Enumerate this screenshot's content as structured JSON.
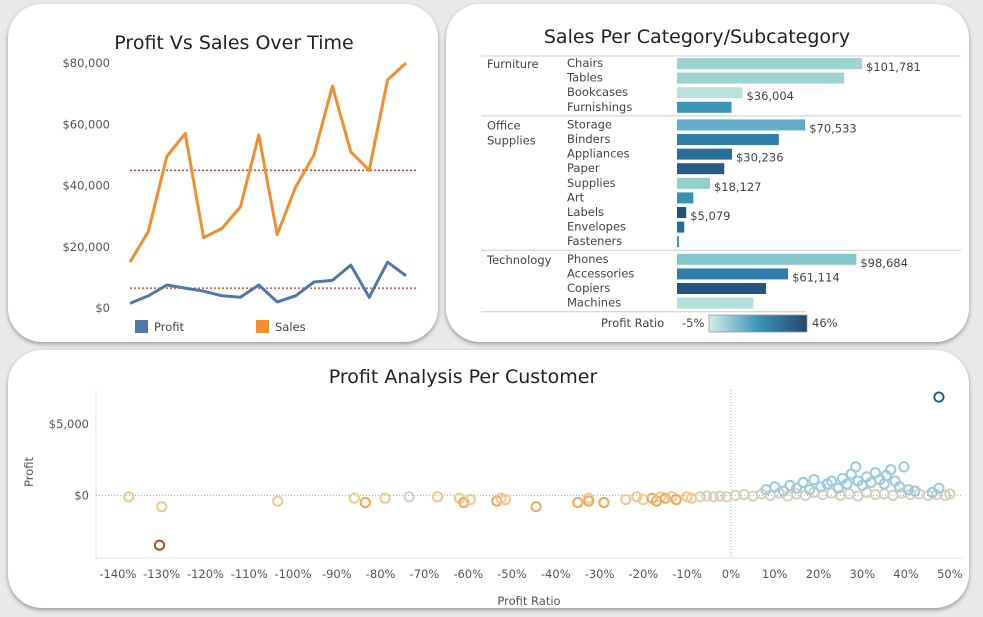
{
  "chart_data": [
    {
      "type": "line",
      "title": "Profit Vs Sales Over Time",
      "y_ticks": [
        "$80,000",
        "$60,000",
        "$40,000",
        "$20,000",
        "$0"
      ],
      "ylim": [
        0,
        80000
      ],
      "series": [
        {
          "name": "Sales",
          "color": "#f28e2b",
          "values": [
            15000,
            25000,
            49500,
            57000,
            23000,
            26000,
            33000,
            56500,
            24000,
            39500,
            50000,
            72500,
            51000,
            45000,
            74500,
            80000
          ]
        },
        {
          "name": "Profit",
          "color": "#4e79a7",
          "values": [
            1500,
            4000,
            7500,
            6500,
            5500,
            4000,
            3500,
            7500,
            2000,
            4000,
            8500,
            9000,
            14000,
            3500,
            15000,
            10500
          ]
        }
      ],
      "reference_lines": [
        {
          "series": "Sales",
          "value": 45000
        },
        {
          "series": "Profit",
          "value": 6500
        }
      ],
      "reference_line_color": "#c0392b",
      "legend": [
        {
          "label": "Profit",
          "color": "#4e79a7"
        },
        {
          "label": "Sales",
          "color": "#f28e2b"
        }
      ]
    },
    {
      "type": "bar",
      "title": "Sales Per Category/Subcategory",
      "max_value": 101781,
      "groups": [
        {
          "category": [
            "Furniture"
          ],
          "items": [
            {
              "name": "Chairs",
              "value": 101781,
              "label": "$101,781",
              "color": "#9fd3d1"
            },
            {
              "name": "Tables",
              "value": 92000,
              "label": "",
              "color": "#9fd3d1"
            },
            {
              "name": "Bookcases",
              "value": 36004,
              "label": "$36,004",
              "color": "#b9e2d9"
            },
            {
              "name": "Furnishings",
              "value": 30000,
              "label": "",
              "color": "#3d95b6"
            }
          ]
        },
        {
          "category": [
            "Office",
            "Supplies"
          ],
          "items": [
            {
              "name": "Storage",
              "value": 70533,
              "label": "$70,533",
              "color": "#63aec6"
            },
            {
              "name": "Binders",
              "value": 56000,
              "label": "",
              "color": "#2e7ea9"
            },
            {
              "name": "Appliances",
              "value": 30236,
              "label": "$30,236",
              "color": "#2a6e9a"
            },
            {
              "name": "Paper",
              "value": 26000,
              "label": "",
              "color": "#285b86"
            },
            {
              "name": "Supplies",
              "value": 18127,
              "label": "$18,127",
              "color": "#95cfcc"
            },
            {
              "name": "Art",
              "value": 9000,
              "label": "",
              "color": "#3a90b3"
            },
            {
              "name": "Labels",
              "value": 5079,
              "label": "$5,079",
              "color": "#244f78"
            },
            {
              "name": "Envelopes",
              "value": 4000,
              "label": "",
              "color": "#2a6a95"
            },
            {
              "name": "Fasteners",
              "value": 1000,
              "label": "",
              "color": "#3d95b6"
            }
          ]
        },
        {
          "category": [
            "Technology"
          ],
          "items": [
            {
              "name": "Phones",
              "value": 98684,
              "label": "$98,684",
              "color": "#84c6c9"
            },
            {
              "name": "Accessories",
              "value": 61114,
              "label": "$61,114",
              "color": "#2f7faa"
            },
            {
              "name": "Copiers",
              "value": 49000,
              "label": "",
              "color": "#23557f"
            },
            {
              "name": "Machines",
              "value": 42000,
              "label": "",
              "color": "#b3e0d8"
            }
          ]
        }
      ],
      "color_legend": {
        "title": "Profit Ratio",
        "min_label": "-5%",
        "max_label": "46%",
        "colors": [
          "#d3ede8",
          "#3d95b6",
          "#23476f"
        ]
      }
    },
    {
      "type": "scatter",
      "title": "Profit Analysis Per Customer",
      "xlabel": "Profit Ratio",
      "ylabel": "Profit",
      "x_ticks": [
        "-140%",
        "-130%",
        "-120%",
        "-110%",
        "-100%",
        "-90%",
        "-80%",
        "-70%",
        "-60%",
        "-50%",
        "-40%",
        "-30%",
        "-20%",
        "-10%",
        "0%",
        "10%",
        "20%",
        "30%",
        "40%",
        "50%"
      ],
      "y_ticks": [
        "$5,000",
        "$0"
      ],
      "xlim": [
        -145,
        53
      ],
      "ylim": [
        -4400,
        7400
      ],
      "colors": {
        "very_negative": "#b24a2a",
        "negative": "#f0a95a",
        "slightly_negative": "#f3c88d",
        "near_zero": "#d9cfc0",
        "positive": "#9ecae1",
        "very_positive": "#2d5f8e"
      },
      "points": [
        [
          47.5,
          6900,
          "very_positive"
        ],
        [
          -130.5,
          -3500,
          "very_negative"
        ],
        [
          -137.5,
          -100,
          "slightly_negative"
        ],
        [
          -130,
          -800,
          "slightly_negative"
        ],
        [
          -103.5,
          -400,
          "slightly_negative"
        ],
        [
          -86,
          -200,
          "slightly_negative"
        ],
        [
          -83.5,
          -500,
          "negative"
        ],
        [
          -79,
          -200,
          "slightly_negative"
        ],
        [
          -73.5,
          -100,
          "near_zero"
        ],
        [
          -67,
          -100,
          "slightly_negative"
        ],
        [
          -62,
          -200,
          "slightly_negative"
        ],
        [
          -61,
          -500,
          "negative"
        ],
        [
          -59.5,
          -300,
          "slightly_negative"
        ],
        [
          -53.5,
          -400,
          "negative"
        ],
        [
          -52.5,
          -200,
          "slightly_negative"
        ],
        [
          -51.5,
          -300,
          "slightly_negative"
        ],
        [
          -44.5,
          -800,
          "negative"
        ],
        [
          -35,
          -500,
          "negative"
        ],
        [
          -32.5,
          -200,
          "slightly_negative"
        ],
        [
          -32.5,
          -400,
          "negative"
        ],
        [
          -29,
          -500,
          "negative"
        ],
        [
          -24,
          -300,
          "slightly_negative"
        ],
        [
          -21.5,
          -100,
          "slightly_negative"
        ],
        [
          -20,
          -300,
          "slightly_negative"
        ],
        [
          -18,
          -200,
          "negative"
        ],
        [
          -17,
          -400,
          "negative"
        ],
        [
          -16,
          -100,
          "slightly_negative"
        ],
        [
          -15,
          -200,
          "negative"
        ],
        [
          -13.5,
          -100,
          "slightly_negative"
        ],
        [
          -12.5,
          -300,
          "negative"
        ],
        [
          -10,
          -100,
          "slightly_negative"
        ],
        [
          -9,
          -200,
          "slightly_negative"
        ],
        [
          -7,
          -100,
          "near_zero"
        ],
        [
          -5.5,
          -50,
          "near_zero"
        ],
        [
          -4,
          -100,
          "near_zero"
        ],
        [
          -2.5,
          -50,
          "near_zero"
        ],
        [
          -1,
          -100,
          "near_zero"
        ],
        [
          1,
          0,
          "near_zero"
        ],
        [
          3,
          50,
          "near_zero"
        ],
        [
          5,
          -50,
          "near_zero"
        ],
        [
          7,
          100,
          "near_zero"
        ],
        [
          9,
          0,
          "near_zero"
        ],
        [
          11,
          150,
          "near_zero"
        ],
        [
          13,
          -50,
          "near_zero"
        ],
        [
          15,
          100,
          "near_zero"
        ],
        [
          17,
          0,
          "near_zero"
        ],
        [
          19,
          200,
          "near_zero"
        ],
        [
          21,
          50,
          "near_zero"
        ],
        [
          23,
          150,
          "near_zero"
        ],
        [
          25,
          0,
          "near_zero"
        ],
        [
          27,
          100,
          "near_zero"
        ],
        [
          29,
          -50,
          "near_zero"
        ],
        [
          31,
          200,
          "near_zero"
        ],
        [
          33,
          50,
          "near_zero"
        ],
        [
          35,
          100,
          "near_zero"
        ],
        [
          37,
          0,
          "near_zero"
        ],
        [
          39,
          150,
          "near_zero"
        ],
        [
          41,
          50,
          "near_zero"
        ],
        [
          43,
          100,
          "near_zero"
        ],
        [
          45,
          0,
          "near_zero"
        ],
        [
          47,
          50,
          "near_zero"
        ],
        [
          49,
          0,
          "near_zero"
        ],
        [
          50,
          100,
          "near_zero"
        ],
        [
          8,
          400,
          "positive"
        ],
        [
          10,
          600,
          "positive"
        ],
        [
          12,
          300,
          "positive"
        ],
        [
          13.5,
          700,
          "positive"
        ],
        [
          15,
          500,
          "positive"
        ],
        [
          16.5,
          900,
          "positive"
        ],
        [
          18,
          400,
          "positive"
        ],
        [
          19,
          1100,
          "positive"
        ],
        [
          20.5,
          600,
          "positive"
        ],
        [
          22,
          800,
          "positive"
        ],
        [
          23,
          1000,
          "positive"
        ],
        [
          24.5,
          500,
          "positive"
        ],
        [
          25.5,
          1200,
          "positive"
        ],
        [
          26.5,
          800,
          "positive"
        ],
        [
          27.5,
          1500,
          "positive"
        ],
        [
          28.5,
          2000,
          "positive"
        ],
        [
          29,
          1000,
          "positive"
        ],
        [
          30,
          700,
          "positive"
        ],
        [
          31,
          1300,
          "positive"
        ],
        [
          32,
          900,
          "positive"
        ],
        [
          33,
          1600,
          "positive"
        ],
        [
          34,
          1100,
          "positive"
        ],
        [
          35,
          800,
          "positive"
        ],
        [
          35.5,
          1400,
          "positive"
        ],
        [
          36.5,
          1800,
          "positive"
        ],
        [
          37.5,
          1000,
          "positive"
        ],
        [
          38.5,
          600,
          "positive"
        ],
        [
          39.5,
          2000,
          "positive"
        ],
        [
          40.5,
          400,
          "positive"
        ],
        [
          42,
          300,
          "positive"
        ],
        [
          46,
          200,
          "positive"
        ],
        [
          47.5,
          500,
          "positive"
        ]
      ]
    }
  ]
}
